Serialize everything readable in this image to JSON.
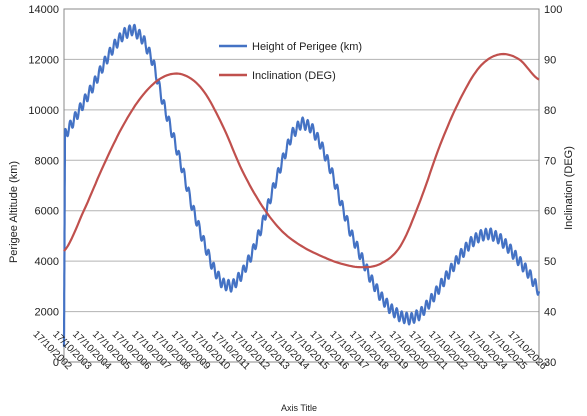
{
  "chart_data": {
    "type": "line",
    "xlabel": "Axis Title",
    "ylabel_left": "Perigee Altitude (km)",
    "ylabel_right": "Inclination (DEG)",
    "y_left_lim": [
      0,
      14000
    ],
    "y_left_ticks": [
      "0",
      "2000",
      "4000",
      "6000",
      "8000",
      "10000",
      "12000",
      "14000"
    ],
    "y_right_lim": [
      30,
      100
    ],
    "y_right_ticks": [
      "30",
      "40",
      "50",
      "60",
      "70",
      "80",
      "90",
      "100"
    ],
    "x_lim": [
      2002,
      2026
    ],
    "x_tick_labels": [
      "17/10/2002",
      "17/10/2003",
      "17/10/2004",
      "17/10/2005",
      "17/10/2006",
      "17/10/2007",
      "17/10/2008",
      "17/10/2009",
      "17/10/2010",
      "17/10/2011",
      "17/10/2012",
      "17/10/2013",
      "17/10/2014",
      "17/10/2015",
      "17/10/2016",
      "17/10/2017",
      "17/10/2018",
      "17/10/2019",
      "17/10/2020",
      "17/10/2021",
      "17/10/2022",
      "17/10/2023",
      "17/10/2024",
      "17/10/2025",
      "17/10/2026"
    ],
    "grid": true,
    "legend_position": "top-right-inside",
    "series": [
      {
        "name": "Height of Perigee (km)",
        "axis": "left",
        "color": "#4472C4",
        "x": [
          2002.0,
          2002.05,
          2002.5,
          2003.0,
          2003.5,
          2004.0,
          2004.5,
          2005.0,
          2005.5,
          2006.0,
          2006.5,
          2007.0,
          2007.5,
          2008.0,
          2008.5,
          2009.0,
          2009.5,
          2010.0,
          2010.5,
          2011.0,
          2011.5,
          2012.0,
          2012.5,
          2013.0,
          2013.5,
          2014.0,
          2014.5,
          2015.0,
          2015.5,
          2016.0,
          2016.5,
          2017.0,
          2017.5,
          2018.0,
          2018.5,
          2019.0,
          2019.5,
          2020.0,
          2020.5,
          2021.0,
          2021.5,
          2022.0,
          2022.5,
          2023.0,
          2023.5,
          2024.0,
          2024.5,
          2025.0,
          2025.5,
          2026.0
        ],
        "y": [
          600,
          9000,
          9600,
          10300,
          11000,
          11800,
          12500,
          13000,
          13200,
          12800,
          11900,
          10300,
          9000,
          7600,
          6100,
          4900,
          3800,
          3100,
          3000,
          3500,
          4300,
          5400,
          6700,
          7900,
          9000,
          9500,
          9300,
          8600,
          7600,
          6300,
          5100,
          4200,
          3300,
          2600,
          2100,
          1800,
          1700,
          1900,
          2400,
          3000,
          3600,
          4200,
          4700,
          5000,
          5100,
          4900,
          4500,
          4000,
          3500,
          2800
        ]
      },
      {
        "name": "Inclination (DEG)",
        "axis": "right",
        "color": "#C0504D",
        "x": [
          2002.0,
          2003.0,
          2004.0,
          2005.0,
          2006.0,
          2007.0,
          2008.0,
          2009.0,
          2010.0,
          2011.0,
          2012.0,
          2013.0,
          2014.0,
          2015.0,
          2016.0,
          2017.0,
          2018.0,
          2019.0,
          2020.0,
          2021.0,
          2022.0,
          2023.0,
          2024.0,
          2025.0,
          2026.0
        ],
        "y": [
          52,
          60,
          69,
          77,
          83,
          86.5,
          87,
          84,
          77,
          68,
          61,
          56,
          53,
          51,
          49.5,
          48.8,
          49.5,
          53,
          62,
          73,
          82,
          88.5,
          91,
          90,
          86
        ]
      }
    ]
  }
}
